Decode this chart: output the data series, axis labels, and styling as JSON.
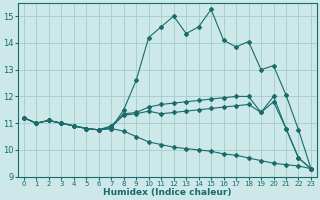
{
  "xlabel": "Humidex (Indice chaleur)",
  "xlim": [
    -0.5,
    23.5
  ],
  "ylim": [
    9,
    15.5
  ],
  "yticks": [
    9,
    10,
    11,
    12,
    13,
    14,
    15
  ],
  "xticks": [
    0,
    1,
    2,
    3,
    4,
    5,
    6,
    7,
    8,
    9,
    10,
    11,
    12,
    13,
    14,
    15,
    16,
    17,
    18,
    19,
    20,
    21,
    22,
    23
  ],
  "bg_color": "#cce8e8",
  "line_color": "#1a6b6b",
  "grid_color": "#aacfcf",
  "line_main_x": [
    0,
    1,
    2,
    3,
    4,
    5,
    6,
    7,
    8,
    9,
    10,
    11,
    12,
    13,
    14,
    15,
    16,
    17,
    18,
    19,
    20,
    21,
    22,
    23
  ],
  "line_main_y": [
    11.2,
    11.0,
    11.1,
    11.0,
    10.9,
    10.8,
    10.75,
    10.8,
    11.5,
    12.6,
    14.2,
    14.6,
    15.0,
    14.35,
    14.6,
    15.25,
    14.1,
    13.85,
    14.05,
    13.0,
    13.15,
    12.05,
    10.75,
    9.3
  ],
  "line_low_x": [
    0,
    1,
    2,
    3,
    4,
    5,
    6,
    7,
    8,
    9,
    10,
    11,
    12,
    13,
    14,
    15,
    16,
    17,
    18,
    19,
    20,
    21,
    22,
    23
  ],
  "line_low_y": [
    11.2,
    11.0,
    11.1,
    11.0,
    10.9,
    10.8,
    10.75,
    10.8,
    10.7,
    10.5,
    10.3,
    10.2,
    10.1,
    10.05,
    10.0,
    9.95,
    9.85,
    9.8,
    9.7,
    9.6,
    9.5,
    9.45,
    9.4,
    9.3
  ],
  "line_mid_x": [
    0,
    1,
    2,
    3,
    4,
    5,
    6,
    7,
    8,
    9,
    10,
    11,
    12,
    13,
    14,
    15,
    16,
    17,
    18,
    19,
    20,
    21,
    22,
    23
  ],
  "line_mid_y": [
    11.2,
    11.0,
    11.1,
    11.0,
    10.9,
    10.8,
    10.75,
    10.9,
    11.35,
    11.4,
    11.6,
    11.7,
    11.75,
    11.8,
    11.85,
    11.9,
    11.95,
    12.0,
    12.0,
    11.4,
    12.0,
    10.8,
    9.7,
    9.3
  ],
  "line_int_x": [
    0,
    1,
    2,
    3,
    4,
    5,
    6,
    7,
    8,
    9,
    10,
    11,
    12,
    13,
    14,
    15,
    16,
    17,
    18,
    19,
    20,
    21,
    22,
    23
  ],
  "line_int_y": [
    11.2,
    11.0,
    11.1,
    11.0,
    10.9,
    10.8,
    10.75,
    10.85,
    11.3,
    11.35,
    11.45,
    11.35,
    11.4,
    11.45,
    11.5,
    11.55,
    11.6,
    11.65,
    11.7,
    11.4,
    11.8,
    10.8,
    9.7,
    9.3
  ]
}
